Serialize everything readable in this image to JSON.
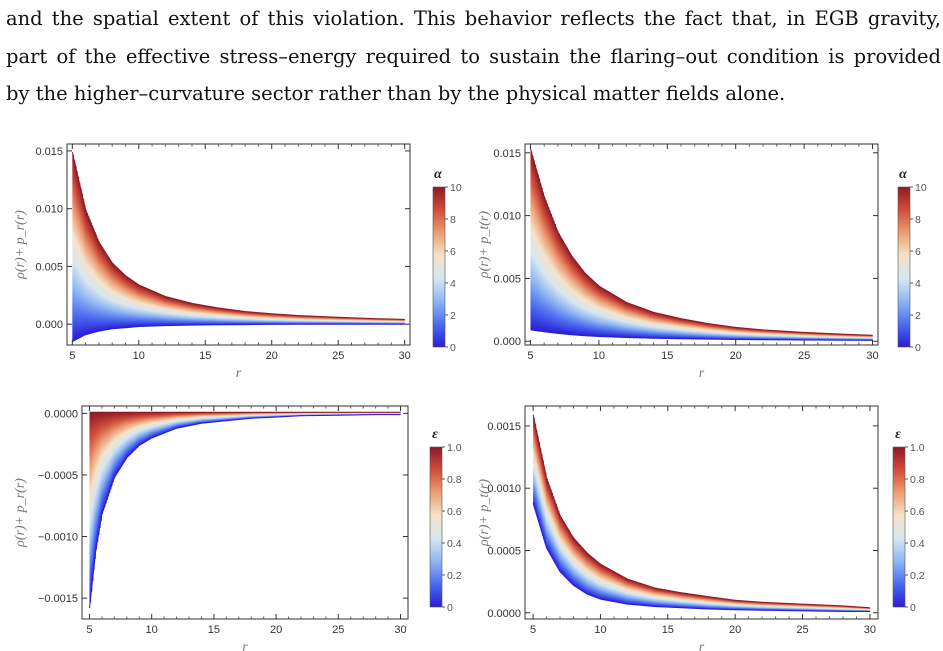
{
  "text": {
    "lines": [
      "and the spatial extent of this violation. This behavior reflects the fact that, in EGB gravity,",
      "part of the effective stress–energy required to sustain the flaring–out condition is provided",
      "by the higher–curvature sector rather than by the physical matter fields alone."
    ]
  },
  "colormap": [
    "#2b1cd6",
    "#4b6cf0",
    "#8fb6f3",
    "#d6e6f0",
    "#f3e3c9",
    "#ec9e74",
    "#cf4d3b",
    "#8e1a26"
  ],
  "chart_data": [
    {
      "type": "area",
      "panel": "top-left",
      "xlabel": "r",
      "ylabel": "ρ(r)+ p_r(r)",
      "xlim": [
        4.6,
        30.4
      ],
      "ylim": [
        -0.0018,
        0.0156
      ],
      "xticks": [
        5,
        10,
        15,
        20,
        25,
        30
      ],
      "xtick_labels": [
        "5",
        "10",
        "15",
        "20",
        "25",
        "30"
      ],
      "yticks": [
        0.0,
        0.005,
        0.01,
        0.015
      ],
      "ytick_labels": [
        "0.000",
        "0.005",
        "0.010",
        "0.015"
      ],
      "colorbar": {
        "title": "α",
        "range": [
          0,
          10
        ],
        "ticks": [
          0,
          2,
          4,
          6,
          8,
          10
        ],
        "tick_labels": [
          "0",
          "2",
          "4",
          "6",
          "8",
          "10"
        ]
      },
      "band": {
        "x": [
          5,
          6,
          7,
          8,
          9,
          10,
          12,
          14,
          16,
          18,
          20,
          22,
          25,
          28,
          30
        ],
        "upper": [
          0.0149,
          0.0099,
          0.0071,
          0.0053,
          0.0042,
          0.0034,
          0.0024,
          0.0018,
          0.0014,
          0.0011,
          0.0009,
          0.00075,
          0.0006,
          0.00048,
          0.00042
        ],
        "lower": [
          -0.0015,
          -0.0009,
          -0.0006,
          -0.0004,
          -0.0003,
          -0.0002,
          -0.00012,
          -8e-05,
          -5e-05,
          -3e-05,
          -2e-05,
          -1e-05,
          0.0,
          0.0,
          0.0
        ]
      }
    },
    {
      "type": "area",
      "panel": "top-right",
      "xlabel": "r",
      "ylabel": "ρ(r)+ p_t(r)",
      "xlim": [
        4.6,
        30.4
      ],
      "ylim": [
        -0.0003,
        0.0157
      ],
      "xticks": [
        5,
        10,
        15,
        20,
        25,
        30
      ],
      "xtick_labels": [
        "5",
        "10",
        "15",
        "20",
        "25",
        "30"
      ],
      "yticks": [
        0.0,
        0.005,
        0.01,
        0.015
      ],
      "ytick_labels": [
        "0.000",
        "0.005",
        "0.010",
        "0.015"
      ],
      "colorbar": {
        "title": "α",
        "range": [
          0,
          10
        ],
        "ticks": [
          0,
          2,
          4,
          6,
          8,
          10
        ],
        "tick_labels": [
          "0",
          "2",
          "4",
          "6",
          "8",
          "10"
        ]
      },
      "band": {
        "x": [
          5,
          6,
          7,
          8,
          9,
          10,
          12,
          14,
          16,
          18,
          20,
          22,
          25,
          28,
          30
        ],
        "upper": [
          0.0153,
          0.0115,
          0.0087,
          0.0068,
          0.0054,
          0.0044,
          0.0031,
          0.0023,
          0.0018,
          0.0014,
          0.0011,
          0.0009,
          0.0007,
          0.00055,
          0.00048
        ],
        "lower": [
          0.0009,
          0.00075,
          0.00062,
          0.00052,
          0.00044,
          0.00038,
          0.0003,
          0.00024,
          0.0002,
          0.00017,
          0.00014,
          0.00012,
          0.0001,
          8e-05,
          7e-05
        ]
      }
    },
    {
      "type": "area",
      "panel": "bottom-left",
      "xlabel": "r",
      "ylabel": "ρ(r)+ p_r(r)",
      "xlim": [
        4.4,
        30.6
      ],
      "ylim": [
        -0.00167,
        6e-05
      ],
      "xticks": [
        5,
        10,
        15,
        20,
        25,
        30
      ],
      "xtick_labels": [
        "5",
        "10",
        "15",
        "20",
        "25",
        "30"
      ],
      "yticks": [
        0.0,
        -0.0005,
        -0.001,
        -0.0015
      ],
      "ytick_labels": [
        "0.0000",
        "−0.0005",
        "−0.0010",
        "−0.0015"
      ],
      "colorbar": {
        "title": "ε",
        "range": [
          0,
          1
        ],
        "ticks": [
          0,
          0.2,
          0.4,
          0.6,
          0.8,
          1.0
        ],
        "tick_labels": [
          "0",
          "0.2",
          "0.4",
          "0.6",
          "0.8",
          "1.0"
        ]
      },
      "band": {
        "x": [
          5,
          5.5,
          6,
          7,
          8,
          9,
          10,
          12,
          14,
          16,
          18,
          20,
          22,
          25,
          28,
          30
        ],
        "upper": [
          1e-05,
          1e-05,
          1e-05,
          1e-05,
          1e-05,
          1e-05,
          1e-05,
          1e-05,
          1e-05,
          1e-05,
          1e-05,
          1e-05,
          1e-05,
          1e-05,
          1e-05,
          1e-05
        ],
        "lower": [
          -0.00158,
          -0.00112,
          -0.00082,
          -0.00052,
          -0.00036,
          -0.00026,
          -0.0002,
          -0.00012,
          -8e-05,
          -6e-05,
          -4e-05,
          -3e-05,
          -2e-05,
          -1.5e-05,
          -1e-05,
          -1e-05
        ]
      }
    },
    {
      "type": "area",
      "panel": "bottom-right",
      "xlabel": "r",
      "ylabel": "ρ(r)+ p_t(r)",
      "xlim": [
        4.4,
        30.6
      ],
      "ylim": [
        -5e-05,
        0.00166
      ],
      "xticks": [
        5,
        10,
        15,
        20,
        25,
        30
      ],
      "xtick_labels": [
        "5",
        "10",
        "15",
        "20",
        "25",
        "30"
      ],
      "yticks": [
        0.0,
        0.0005,
        0.001,
        0.0015
      ],
      "ytick_labels": [
        "0.0000",
        "0.0005",
        "0.0010",
        "0.0015"
      ],
      "colorbar": {
        "title": "ε",
        "range": [
          0,
          1
        ],
        "ticks": [
          0,
          0.2,
          0.4,
          0.6,
          0.8,
          1.0
        ],
        "tick_labels": [
          "0",
          "0.2",
          "0.4",
          "0.6",
          "0.8",
          "1.0"
        ]
      },
      "band": {
        "x": [
          5,
          6,
          7,
          8,
          9,
          10,
          12,
          14,
          16,
          18,
          20,
          22,
          25,
          28,
          30
        ],
        "upper": [
          0.00159,
          0.00108,
          0.00078,
          0.0006,
          0.00048,
          0.00039,
          0.00027,
          0.0002,
          0.00016,
          0.00013,
          0.0001,
          8.5e-05,
          7e-05,
          5.5e-05,
          4e-05
        ],
        "lower": [
          0.00088,
          0.00052,
          0.00033,
          0.00022,
          0.00015,
          0.00011,
          7e-05,
          5e-05,
          4e-05,
          3e-05,
          2.5e-05,
          2e-05,
          1.5e-05,
          1e-05,
          1e-05
        ]
      }
    }
  ]
}
